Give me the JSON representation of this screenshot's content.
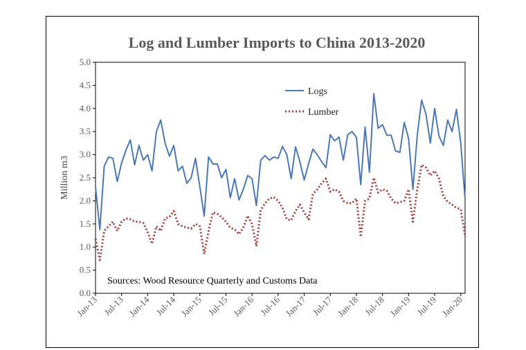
{
  "chart_data": {
    "type": "line",
    "title": "Log and Lumber  Imports to China 2013-2020",
    "xlabel": "",
    "ylabel": "Million m3",
    "ylim": [
      0,
      5
    ],
    "yticks": [
      "0.0",
      "0.5",
      "1.0",
      "1.5",
      "2.0",
      "2.5",
      "3.0",
      "3.5",
      "4.0",
      "4.5",
      "5.0"
    ],
    "xtick_labels": [
      "Jan-13",
      "Jul-13",
      "Jan-14",
      "Jul-14",
      "Jan-15",
      "Jul-15",
      "Jan-16",
      "Jul-16",
      "Jan-17",
      "Jul-17",
      "Jan-18",
      "Jul-18",
      "Jan-19",
      "Jul-19",
      "Jan-20"
    ],
    "legend_position": "upper-center",
    "annotation": "Sources: Wood Resource Quarterly and Customs Data",
    "series": [
      {
        "name": "Logs",
        "color": "#4a78b5",
        "style": "solid",
        "values": [
          2.3,
          1.38,
          2.75,
          2.95,
          2.92,
          2.42,
          2.82,
          3.1,
          3.32,
          2.78,
          3.2,
          2.88,
          3.0,
          2.65,
          3.5,
          3.75,
          3.25,
          2.97,
          3.2,
          2.65,
          2.75,
          2.38,
          2.5,
          2.92,
          2.3,
          1.67,
          2.95,
          2.8,
          2.8,
          2.5,
          2.68,
          2.07,
          2.48,
          2.02,
          2.25,
          2.55,
          2.48,
          1.9,
          2.88,
          2.98,
          2.88,
          2.95,
          2.92,
          3.18,
          3.0,
          2.48,
          3.17,
          2.85,
          2.45,
          2.8,
          3.12,
          3.0,
          2.85,
          2.72,
          3.43,
          3.3,
          3.38,
          2.88,
          3.43,
          3.5,
          3.38,
          2.35,
          3.6,
          2.62,
          4.32,
          3.57,
          3.65,
          3.42,
          3.42,
          3.08,
          3.05,
          3.7,
          3.35,
          2.25,
          3.42,
          4.18,
          3.88,
          3.25,
          4.0,
          3.4,
          3.2,
          3.75,
          3.5,
          3.98,
          3.25,
          2.03
        ]
      },
      {
        "name": "Lumber",
        "color": "#a33a3a",
        "style": "dotted",
        "values": [
          1.18,
          0.72,
          1.35,
          1.45,
          1.55,
          1.35,
          1.55,
          1.62,
          1.6,
          1.55,
          1.55,
          1.52,
          1.32,
          1.07,
          1.45,
          1.35,
          1.62,
          1.65,
          1.78,
          1.5,
          1.45,
          1.42,
          1.4,
          1.5,
          1.45,
          0.85,
          1.35,
          1.75,
          1.72,
          1.65,
          1.55,
          1.42,
          1.38,
          1.28,
          1.42,
          1.68,
          1.5,
          1.02,
          1.8,
          1.95,
          2.05,
          2.08,
          2.0,
          1.85,
          1.6,
          1.58,
          1.78,
          1.92,
          1.75,
          1.6,
          2.15,
          2.25,
          2.38,
          2.48,
          2.2,
          2.25,
          2.2,
          2.0,
          1.95,
          1.95,
          2.05,
          1.22,
          2.0,
          2.05,
          2.5,
          2.18,
          2.25,
          2.22,
          2.05,
          1.95,
          1.97,
          2.0,
          2.25,
          1.55,
          2.25,
          2.78,
          2.72,
          2.55,
          2.65,
          2.48,
          2.1,
          1.98,
          1.92,
          1.85,
          1.82,
          1.25
        ]
      }
    ]
  }
}
